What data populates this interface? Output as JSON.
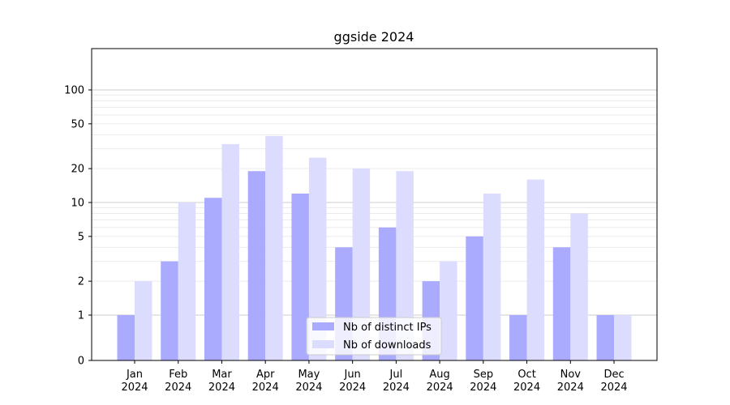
{
  "chart_data": {
    "type": "bar",
    "title": "ggside 2024",
    "xlabel": "",
    "ylabel": "",
    "yscale": "symlog",
    "ylim": [
      0,
      110
    ],
    "yticks": [
      0,
      1,
      2,
      5,
      10,
      20,
      50,
      100
    ],
    "ytick_labels": [
      "0",
      "1",
      "2",
      "5",
      "10",
      "20",
      "50",
      "100"
    ],
    "grid": true,
    "legend_position": "bottom-center",
    "categories": [
      "Jan\n2024",
      "Feb\n2024",
      "Mar\n2024",
      "Apr\n2024",
      "May\n2024",
      "Jun\n2024",
      "Jul\n2024",
      "Aug\n2024",
      "Sep\n2024",
      "Oct\n2024",
      "Nov\n2024",
      "Dec\n2024"
    ],
    "category_lines": [
      [
        "Jan",
        "2024"
      ],
      [
        "Feb",
        "2024"
      ],
      [
        "Mar",
        "2024"
      ],
      [
        "Apr",
        "2024"
      ],
      [
        "May",
        "2024"
      ],
      [
        "Jun",
        "2024"
      ],
      [
        "Jul",
        "2024"
      ],
      [
        "Aug",
        "2024"
      ],
      [
        "Sep",
        "2024"
      ],
      [
        "Oct",
        "2024"
      ],
      [
        "Nov",
        "2024"
      ],
      [
        "Dec",
        "2024"
      ]
    ],
    "series": [
      {
        "name": "Nb of distinct IPs",
        "color": "#aaaaff",
        "values": [
          1,
          3,
          11,
          19,
          12,
          4,
          6,
          2,
          5,
          1,
          4,
          1
        ]
      },
      {
        "name": "Nb of downloads",
        "color": "#dcdcff",
        "values": [
          2,
          10,
          33,
          39,
          25,
          20,
          19,
          3,
          12,
          16,
          8,
          1
        ]
      }
    ]
  }
}
